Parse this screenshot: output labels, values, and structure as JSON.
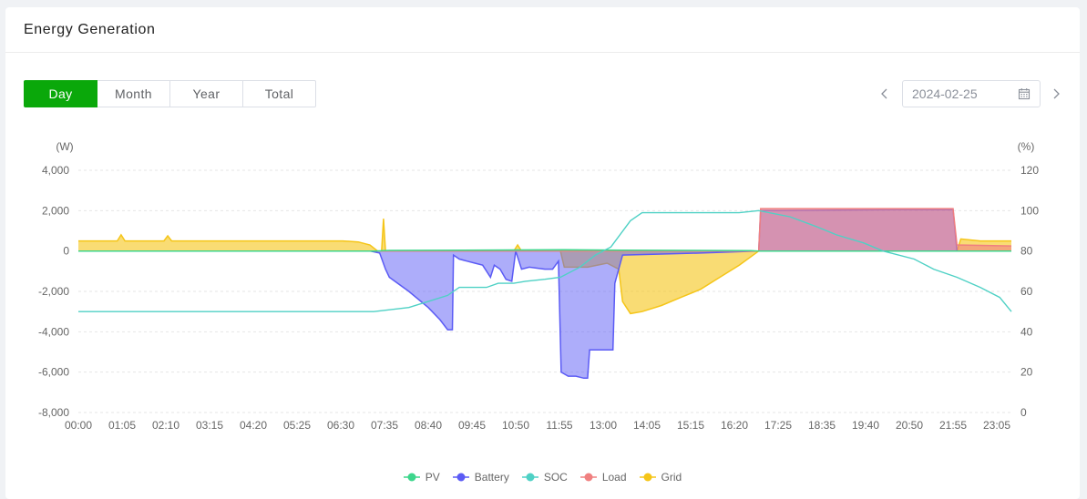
{
  "card": {
    "title": "Energy Generation"
  },
  "tabs": [
    {
      "label": "Day",
      "active": true
    },
    {
      "label": "Month",
      "active": false
    },
    {
      "label": "Year",
      "active": false
    },
    {
      "label": "Total",
      "active": false
    }
  ],
  "date_picker": {
    "value": "2024-02-25",
    "icon": "calendar-icon",
    "prev_icon": "chevron-left-icon",
    "next_icon": "chevron-right-icon"
  },
  "colors": {
    "PV": "#3dd68c",
    "Battery": "#5b5bf5",
    "SOC": "#4fd1c5",
    "Load": "#f08080",
    "Grid": "#f5c518"
  },
  "chart_data": {
    "type": "area",
    "title": "",
    "y_left": {
      "label": "(W)",
      "min": -8000,
      "max": 4000,
      "ticks": [
        "4,000",
        "2,000",
        "0",
        "-2,000",
        "-4,000",
        "-6,000",
        "-8,000"
      ]
    },
    "y_right": {
      "label": "(%)",
      "min": 0,
      "max": 120,
      "ticks": [
        "120",
        "100",
        "80",
        "60",
        "40",
        "20",
        "0"
      ]
    },
    "x_ticks": [
      "00:00",
      "01:05",
      "02:10",
      "03:15",
      "04:20",
      "05:25",
      "06:30",
      "07:35",
      "08:40",
      "09:45",
      "10:50",
      "11:55",
      "13:00",
      "14:05",
      "15:15",
      "16:20",
      "17:25",
      "18:35",
      "19:40",
      "20:50",
      "21:55",
      "23:05"
    ],
    "x_range_hours": [
      0,
      24
    ],
    "grid": true,
    "legend_position": "bottom",
    "legend": [
      "PV",
      "Battery",
      "SOC",
      "Load",
      "Grid"
    ],
    "series": [
      {
        "name": "PV",
        "axis": "left",
        "points": [
          [
            0,
            0
          ],
          [
            7.6,
            0
          ],
          [
            8.0,
            30
          ],
          [
            12.5,
            60
          ],
          [
            14,
            40
          ],
          [
            17.3,
            20
          ],
          [
            17.5,
            0
          ],
          [
            24,
            0
          ]
        ]
      },
      {
        "name": "Battery",
        "axis": "left",
        "points": [
          [
            0,
            0
          ],
          [
            7.5,
            0
          ],
          [
            7.75,
            -100
          ],
          [
            7.9,
            -900
          ],
          [
            8.0,
            -1300
          ],
          [
            8.5,
            -2000
          ],
          [
            9.0,
            -2800
          ],
          [
            9.3,
            -3400
          ],
          [
            9.5,
            -3900
          ],
          [
            9.62,
            -3900
          ],
          [
            9.65,
            -200
          ],
          [
            9.8,
            -400
          ],
          [
            10.0,
            -500
          ],
          [
            10.2,
            -600
          ],
          [
            10.4,
            -700
          ],
          [
            10.5,
            -1000
          ],
          [
            10.6,
            -1300
          ],
          [
            10.7,
            -700
          ],
          [
            10.85,
            -900
          ],
          [
            11.0,
            -1400
          ],
          [
            11.15,
            -1500
          ],
          [
            11.25,
            0
          ],
          [
            11.4,
            -900
          ],
          [
            11.6,
            -800
          ],
          [
            12.0,
            -900
          ],
          [
            12.2,
            -900
          ],
          [
            12.35,
            -500
          ],
          [
            12.42,
            -6000
          ],
          [
            12.6,
            -6200
          ],
          [
            12.8,
            -6200
          ],
          [
            13.0,
            -6300
          ],
          [
            13.1,
            -6300
          ],
          [
            13.15,
            -4900
          ],
          [
            13.5,
            -4900
          ],
          [
            13.75,
            -4900
          ],
          [
            13.8,
            -1600
          ],
          [
            14.0,
            -200
          ],
          [
            15.0,
            -150
          ],
          [
            16.0,
            -100
          ],
          [
            17.5,
            0
          ],
          [
            17.55,
            2000
          ],
          [
            18.0,
            2000
          ],
          [
            21.0,
            2050
          ],
          [
            22.5,
            2050
          ],
          [
            22.6,
            0
          ],
          [
            24,
            0
          ]
        ]
      },
      {
        "name": "SOC",
        "axis": "right",
        "points": [
          [
            0,
            50
          ],
          [
            7.6,
            50
          ],
          [
            8.5,
            52
          ],
          [
            9.0,
            55
          ],
          [
            9.5,
            58
          ],
          [
            9.8,
            62
          ],
          [
            10.0,
            62
          ],
          [
            10.5,
            62
          ],
          [
            10.8,
            64
          ],
          [
            11.2,
            64
          ],
          [
            11.5,
            65
          ],
          [
            12.0,
            66
          ],
          [
            12.4,
            67
          ],
          [
            12.9,
            72
          ],
          [
            13.3,
            78
          ],
          [
            13.7,
            82
          ],
          [
            14.2,
            95
          ],
          [
            14.5,
            99
          ],
          [
            15.0,
            99
          ],
          [
            16.0,
            99
          ],
          [
            17.0,
            99
          ],
          [
            17.5,
            100
          ],
          [
            18.3,
            97
          ],
          [
            19.0,
            92
          ],
          [
            19.5,
            88
          ],
          [
            20.2,
            84
          ],
          [
            20.7,
            80
          ],
          [
            21.5,
            76
          ],
          [
            22.0,
            71
          ],
          [
            22.6,
            67
          ],
          [
            23.2,
            62
          ],
          [
            23.7,
            57
          ],
          [
            24,
            50
          ]
        ]
      },
      {
        "name": "Load",
        "axis": "left",
        "points": [
          [
            0,
            0
          ],
          [
            17.5,
            0
          ],
          [
            17.55,
            2100
          ],
          [
            22.5,
            2100
          ],
          [
            22.6,
            300
          ],
          [
            24,
            250
          ]
        ]
      },
      {
        "name": "Grid",
        "axis": "left",
        "points": [
          [
            0,
            500
          ],
          [
            1.0,
            500
          ],
          [
            1.1,
            800
          ],
          [
            1.2,
            500
          ],
          [
            2.2,
            500
          ],
          [
            2.3,
            750
          ],
          [
            2.4,
            500
          ],
          [
            6.8,
            500
          ],
          [
            7.2,
            450
          ],
          [
            7.5,
            300
          ],
          [
            7.7,
            0
          ],
          [
            7.8,
            0
          ],
          [
            7.85,
            1600
          ],
          [
            7.9,
            0
          ],
          [
            11.2,
            0
          ],
          [
            11.3,
            300
          ],
          [
            11.4,
            0
          ],
          [
            12.4,
            0
          ],
          [
            12.5,
            -800
          ],
          [
            13.1,
            -800
          ],
          [
            13.6,
            -600
          ],
          [
            13.9,
            -900
          ],
          [
            14.0,
            -2500
          ],
          [
            14.2,
            -3100
          ],
          [
            14.5,
            -3000
          ],
          [
            15.0,
            -2700
          ],
          [
            15.5,
            -2300
          ],
          [
            16.0,
            -1900
          ],
          [
            16.5,
            -1300
          ],
          [
            17.0,
            -700
          ],
          [
            17.5,
            0
          ],
          [
            22.6,
            0
          ],
          [
            22.7,
            600
          ],
          [
            23.2,
            500
          ],
          [
            24,
            500
          ]
        ]
      }
    ]
  }
}
